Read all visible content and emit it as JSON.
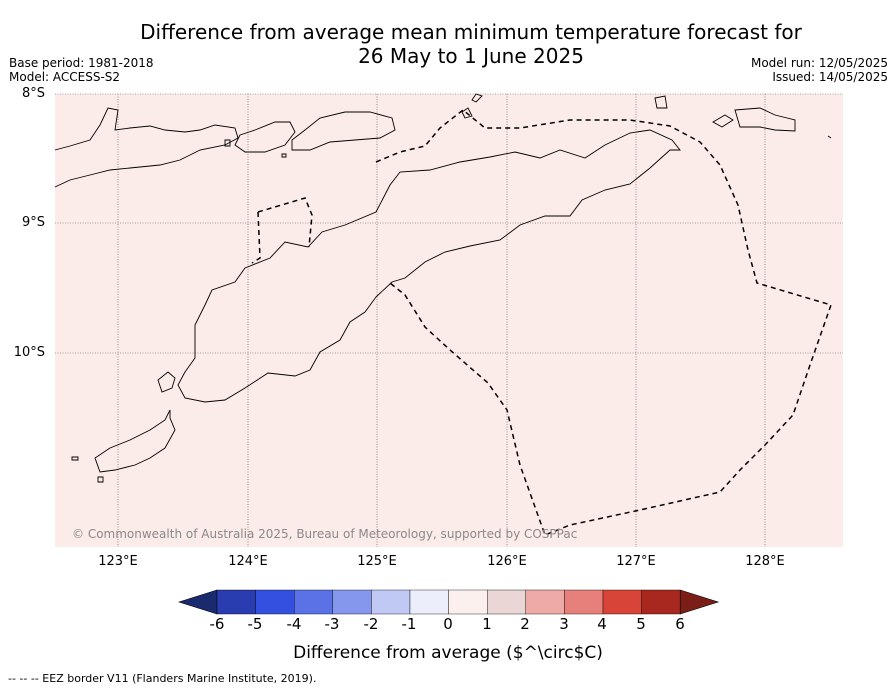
{
  "title_line1": "Difference from average mean minimum temperature forecast for",
  "title_line2": "26 May to 1 June 2025",
  "base_period": "Base period: 1981-2018",
  "model": "Model: ACCESS-S2",
  "model_run": "Model run: 12/05/2025",
  "issued": "Issued: 14/05/2025",
  "lat_labels": [
    "8°S",
    "9°S",
    "10°S"
  ],
  "lon_labels": [
    "123°E",
    "124°E",
    "125°E",
    "126°E",
    "127°E",
    "128°E"
  ],
  "copyright": "© Commonwealth of Australia 2025, Bureau of Meteorology, supported by COSPPac",
  "colorbar": {
    "ticks": [
      "-6",
      "-5",
      "-4",
      "-3",
      "-2",
      "-1",
      "0",
      "1",
      "2",
      "3",
      "4",
      "5",
      "6"
    ],
    "colors": [
      "#1a2a6e",
      "#2a3db0",
      "#3450e0",
      "#5a72e6",
      "#8597ec",
      "#c0c8f4",
      "#eceefb",
      "#fcf0ef",
      "#ead7d5",
      "#eeaaa6",
      "#e7807a",
      "#d84438",
      "#a8271f",
      "#7a1e17"
    ],
    "label": "Difference from average ($^\\circ$C)"
  },
  "map": {
    "fill_color": "#fbebe9",
    "fill_value": "0 to 1"
  },
  "footnote": "--  --  -- EEZ border V11 (Flanders Marine Institute, 2019)."
}
